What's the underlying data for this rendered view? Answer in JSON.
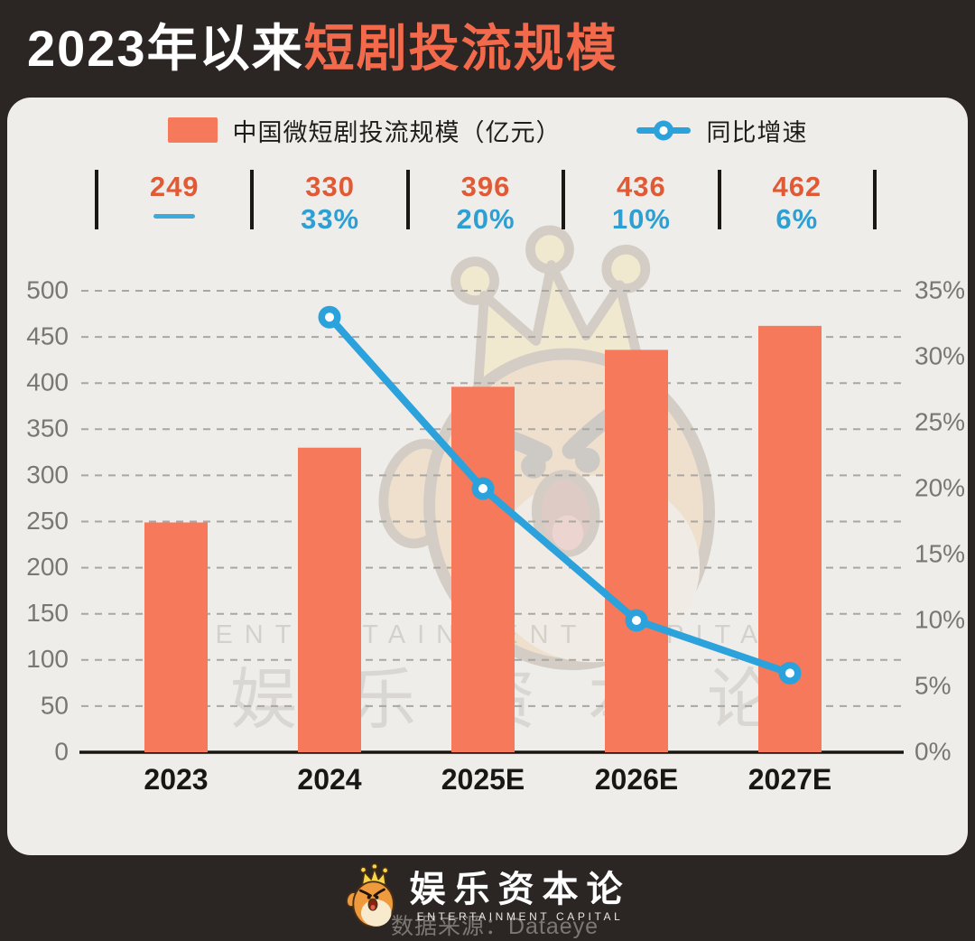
{
  "header": {
    "title_prefix": "2023年以来",
    "title_highlight": "短剧投流规模"
  },
  "legend": {
    "bar_label": "中国微短剧投流规模（亿元）",
    "line_label": "同比增速"
  },
  "stats": [
    {
      "category": "2023",
      "value": "249",
      "growth": null
    },
    {
      "category": "2024",
      "value": "330",
      "growth": "33%"
    },
    {
      "category": "2025E",
      "value": "396",
      "growth": "20%"
    },
    {
      "category": "2026E",
      "value": "436",
      "growth": "10%"
    },
    {
      "category": "2027E",
      "value": "462",
      "growth": "6%"
    }
  ],
  "chart_data": {
    "type": "bar+line",
    "title": "2023年以来短剧投流规模",
    "categories": [
      "2023",
      "2024",
      "2025E",
      "2026E",
      "2027E"
    ],
    "series": [
      {
        "name": "中国微短剧投流规模（亿元）",
        "type": "bar",
        "axis": "left",
        "values": [
          249,
          330,
          396,
          436,
          462
        ]
      },
      {
        "name": "同比增速",
        "type": "line",
        "axis": "right",
        "values": [
          null,
          33,
          20,
          10,
          6
        ],
        "unit": "%"
      }
    ],
    "left_axis": {
      "min": 0,
      "max": 500,
      "step": 50
    },
    "right_axis": {
      "min": 0,
      "max": 35,
      "step": 5,
      "suffix": "%"
    },
    "grid": "horizontal dashed",
    "legend_position": "top"
  },
  "watermark": {
    "en": "ENTERTAINMENT CAPITAL",
    "cn": "娱乐资本论"
  },
  "source": "数据来源：Dataeye",
  "footer": {
    "brand_cn": "娱乐资本论",
    "brand_en": "ENTERTAINMENT CAPITAL"
  },
  "colors": {
    "bar": "#F6795B",
    "line": "#2BA2DB",
    "value_text": "#E05A35",
    "growth_text": "#2D9FD3",
    "title_highlight": "#F26A4B",
    "axis_label": "#7a7672",
    "grid_line": "#aaa7a2",
    "x_label": "#191715",
    "background_dark": "#2B2623",
    "card": "#EFEDEA"
  }
}
